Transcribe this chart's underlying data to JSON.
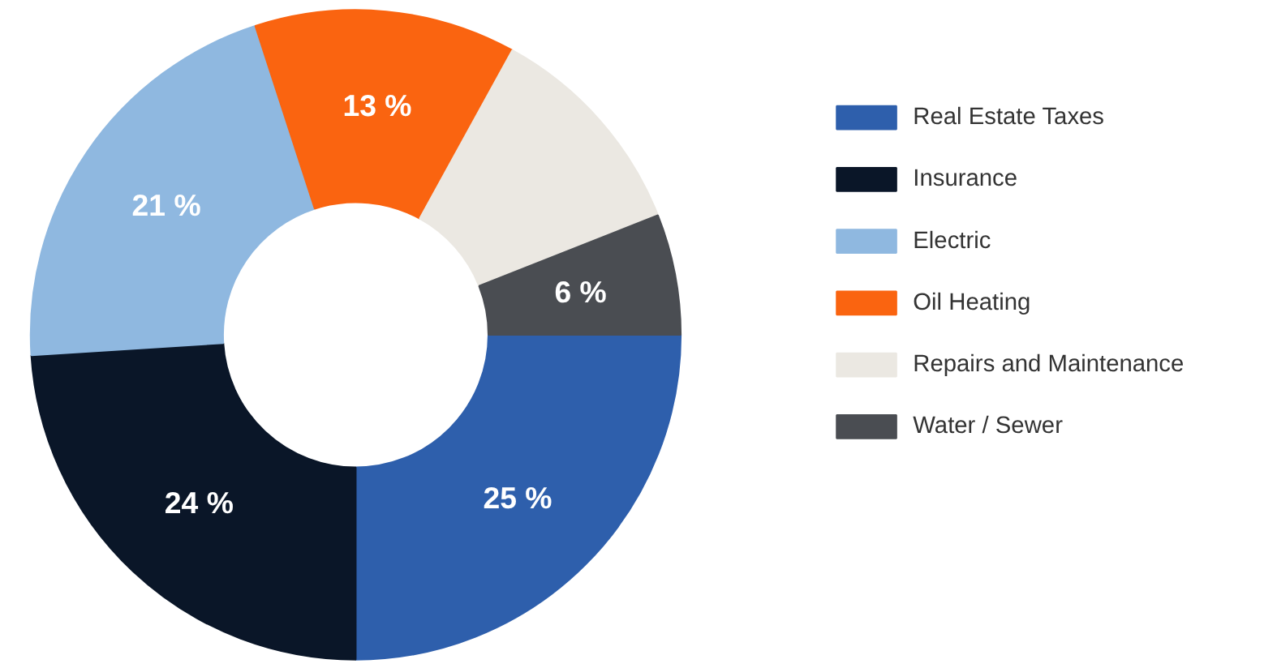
{
  "chart_data": {
    "type": "donut",
    "categories": [
      "Real Estate Taxes",
      "Insurance",
      "Electric",
      "Oil Heating",
      "Repairs and Maintenance",
      "Water / Sewer"
    ],
    "values": [
      25,
      24,
      21,
      13,
      11,
      6
    ],
    "value_labels": [
      "25 %",
      "24 %",
      "21 %",
      "13 %",
      null,
      "6 %"
    ],
    "colors": [
      "#2e5fac",
      "#0a1628",
      "#8fb8e0",
      "#fa6410",
      "#ebe8e2",
      "#4a4d52"
    ],
    "legend": "right"
  }
}
